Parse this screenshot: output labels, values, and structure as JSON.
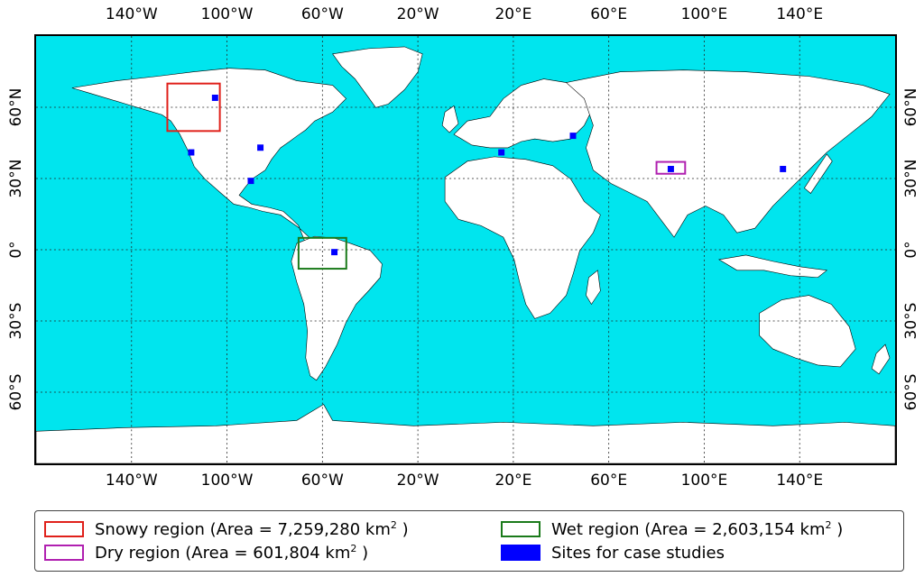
{
  "map": {
    "ocean_color": "#00e5ee",
    "land_color": "#ffffff",
    "lon_ticks": [
      {
        "value": -140,
        "label": "140°W"
      },
      {
        "value": -100,
        "label": "100°W"
      },
      {
        "value": -60,
        "label": "60°W"
      },
      {
        "value": -20,
        "label": "20°W"
      },
      {
        "value": 20,
        "label": "20°E"
      },
      {
        "value": 60,
        "label": "60°E"
      },
      {
        "value": 100,
        "label": "100°E"
      },
      {
        "value": 140,
        "label": "140°E"
      }
    ],
    "lat_ticks": [
      {
        "value": 60,
        "label": "60°N"
      },
      {
        "value": 30,
        "label": "30°N"
      },
      {
        "value": 0,
        "label": "0°"
      },
      {
        "value": -30,
        "label": "30°S"
      },
      {
        "value": -60,
        "label": "60°S"
      }
    ],
    "regions": [
      {
        "name": "Snowy region",
        "color": "#e0201a",
        "lon_range": [
          -125,
          -103
        ],
        "lat_range": [
          50,
          70
        ]
      },
      {
        "name": "Dry region",
        "color": "#b020b0",
        "lon_range": [
          80,
          92
        ],
        "lat_range": [
          32,
          37
        ]
      },
      {
        "name": "Wet region",
        "color": "#1a7a1a",
        "lon_range": [
          -70,
          -50
        ],
        "lat_range": [
          -8,
          5
        ]
      }
    ],
    "sites": [
      {
        "lon": -105,
        "lat": 64
      },
      {
        "lon": -115,
        "lat": 41
      },
      {
        "lon": -86,
        "lat": 43
      },
      {
        "lon": -90,
        "lat": 29
      },
      {
        "lon": -55,
        "lat": -1
      },
      {
        "lon": 15,
        "lat": 41
      },
      {
        "lon": 45,
        "lat": 48
      },
      {
        "lon": 86,
        "lat": 34
      },
      {
        "lon": 133,
        "lat": 34
      }
    ]
  },
  "legend": {
    "snowy_text": "Snowy region (Area = 7,259,280 km",
    "snowy_sup": "2",
    "snowy_close": " )",
    "dry_text": "Dry region (Area = 601,804 km",
    "dry_sup": "2",
    "dry_close": " )",
    "wet_text": "Wet region (Area = 2,603,154 km",
    "wet_sup": "2",
    "wet_close": " )",
    "sites_text": "Sites for case studies",
    "snowy_color": "#e0201a",
    "dry_color": "#b020b0",
    "wet_color": "#1a7a1a",
    "sites_color": "#0000ff"
  }
}
